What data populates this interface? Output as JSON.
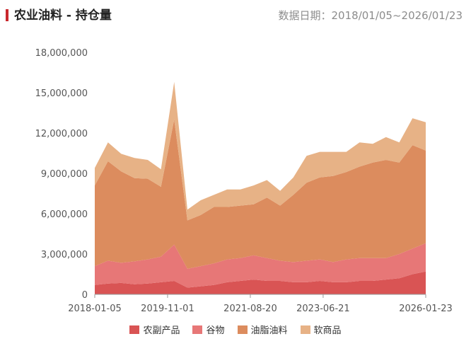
{
  "header": {
    "title": "农业油料 - 持仓量",
    "date_range": "数据日期：2018/01/05~2026/01/23"
  },
  "chart_data": {
    "type": "area",
    "stacked": true,
    "grid": false,
    "legend_position": "bottom",
    "x_ticks": [
      "2018-01-05",
      "2019-11-01",
      "2021-08-20",
      "2023-06-21",
      "2026-01-23"
    ],
    "y_ticks": [
      "0",
      "3,000,000",
      "6,000,000",
      "9,000,000",
      "12,000,000",
      "15,000,000",
      "18,000,000"
    ],
    "ylim": [
      0,
      18000000
    ],
    "x": [
      "2018-01",
      "2018-05",
      "2018-09",
      "2019-01",
      "2019-05",
      "2019-09",
      "2019-11",
      "2020-01",
      "2020-05",
      "2020-09",
      "2021-01",
      "2021-05",
      "2021-09",
      "2022-01",
      "2022-05",
      "2022-09",
      "2023-01",
      "2023-05",
      "2023-09",
      "2024-01",
      "2024-05",
      "2024-09",
      "2025-01",
      "2025-05",
      "2025-09",
      "2026-01"
    ],
    "series": [
      {
        "name": "农副产品",
        "color": "#d95454",
        "values": [
          700000,
          800000,
          850000,
          750000,
          800000,
          900000,
          1000000,
          500000,
          600000,
          700000,
          900000,
          1000000,
          1100000,
          1000000,
          1000000,
          900000,
          900000,
          1000000,
          900000,
          900000,
          1000000,
          1000000,
          1100000,
          1200000,
          1500000,
          1700000
        ]
      },
      {
        "name": "谷物",
        "color": "#e77777",
        "values": [
          1400000,
          1700000,
          1500000,
          1700000,
          1800000,
          1900000,
          2700000,
          1400000,
          1500000,
          1600000,
          1700000,
          1700000,
          1800000,
          1700000,
          1500000,
          1500000,
          1600000,
          1600000,
          1500000,
          1700000,
          1700000,
          1700000,
          1600000,
          1800000,
          1900000,
          2100000
        ]
      },
      {
        "name": "油脂油料",
        "color": "#dc8c5e",
        "values": [
          6000000,
          7400000,
          6800000,
          6200000,
          6000000,
          5200000,
          9300000,
          3600000,
          3800000,
          4200000,
          3900000,
          3900000,
          3800000,
          4500000,
          4100000,
          5000000,
          5800000,
          6100000,
          6400000,
          6500000,
          6800000,
          7100000,
          7300000,
          6800000,
          7700000,
          6900000
        ]
      },
      {
        "name": "软商品",
        "color": "#e7b286",
        "values": [
          1300000,
          1400000,
          1300000,
          1500000,
          1400000,
          1300000,
          2800000,
          800000,
          1100000,
          900000,
          1300000,
          1200000,
          1400000,
          1300000,
          1100000,
          1300000,
          2000000,
          1900000,
          1800000,
          1500000,
          1800000,
          1400000,
          1700000,
          1500000,
          2000000,
          2100000
        ]
      }
    ]
  }
}
